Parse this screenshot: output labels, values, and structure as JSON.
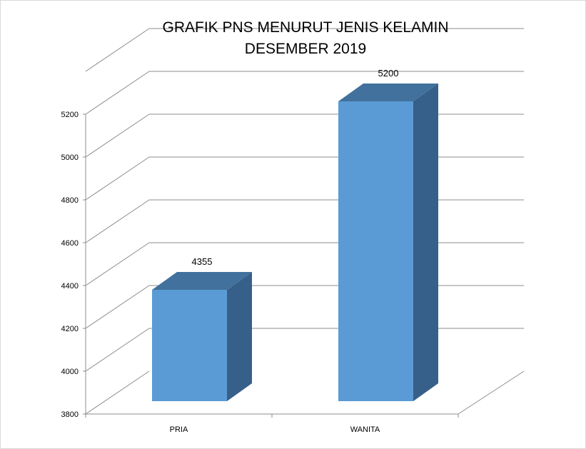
{
  "chart_data": {
    "type": "bar",
    "title": "GRAFIK PNS MENURUT JENIS KELAMIN",
    "subtitle": "DESEMBER 2019",
    "categories": [
      "PRIA",
      "WANITA"
    ],
    "values": [
      4355,
      5200
    ],
    "value_labels": [
      "4355",
      "5200"
    ],
    "ylim": [
      3800,
      5200
    ],
    "yticks": [
      "3800",
      "4000",
      "4200",
      "4400",
      "4600",
      "4800",
      "5000",
      "5200"
    ],
    "grid": true,
    "style": "3d-column",
    "colors": {
      "front": "#5b9bd5",
      "top": "#41719c",
      "side": "#366089",
      "grid": "#8c8c8c"
    }
  }
}
